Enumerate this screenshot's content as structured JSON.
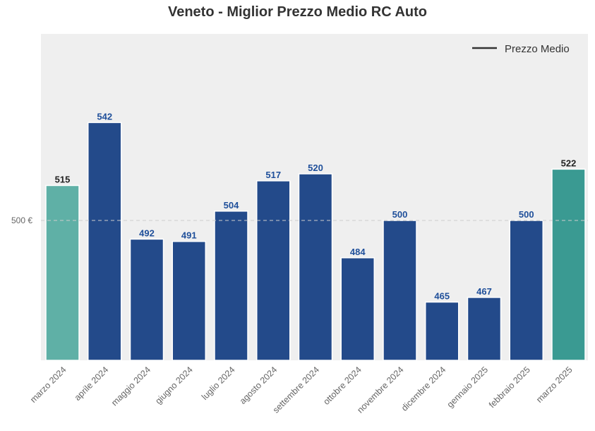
{
  "chart_data": {
    "type": "bar",
    "title": "Veneto - Miglior Prezzo Medio RC Auto",
    "xlabel": "",
    "ylabel": "",
    "categories": [
      "marzo 2024",
      "aprile 2024",
      "maggio 2024",
      "giugno 2024",
      "luglio 2024",
      "agosto 2024",
      "settembre 2024",
      "ottobre 2024",
      "novembre 2024",
      "dicembre 2024",
      "gennaio 2025",
      "febbraio 2025",
      "marzo 2025"
    ],
    "values": [
      515,
      542,
      492,
      491,
      504,
      517,
      520,
      484,
      500,
      465,
      467,
      500,
      522
    ],
    "data_labels": [
      "515",
      "542",
      "492",
      "491",
      "504",
      "517",
      "520",
      "484",
      "500",
      "465",
      "467",
      "500",
      "522"
    ],
    "ylim": [
      440,
      580
    ],
    "yticks": [
      500
    ],
    "ytick_labels": [
      "500 €"
    ],
    "reference_line": {
      "y": 500,
      "style": "dashed"
    },
    "legend": {
      "entries": [
        "Prezzo Medio"
      ],
      "placement": "top-right"
    },
    "grid": false,
    "colors": {
      "default_bar": "#234a8a",
      "first_bar": "#5fb0a6",
      "last_bar": "#3a9a92",
      "default_label": "#1f4f9a",
      "highlight_label": "#222222",
      "plot_background": "#efefef",
      "reference_line": "#cccccc",
      "legend_line": "#333333"
    }
  }
}
